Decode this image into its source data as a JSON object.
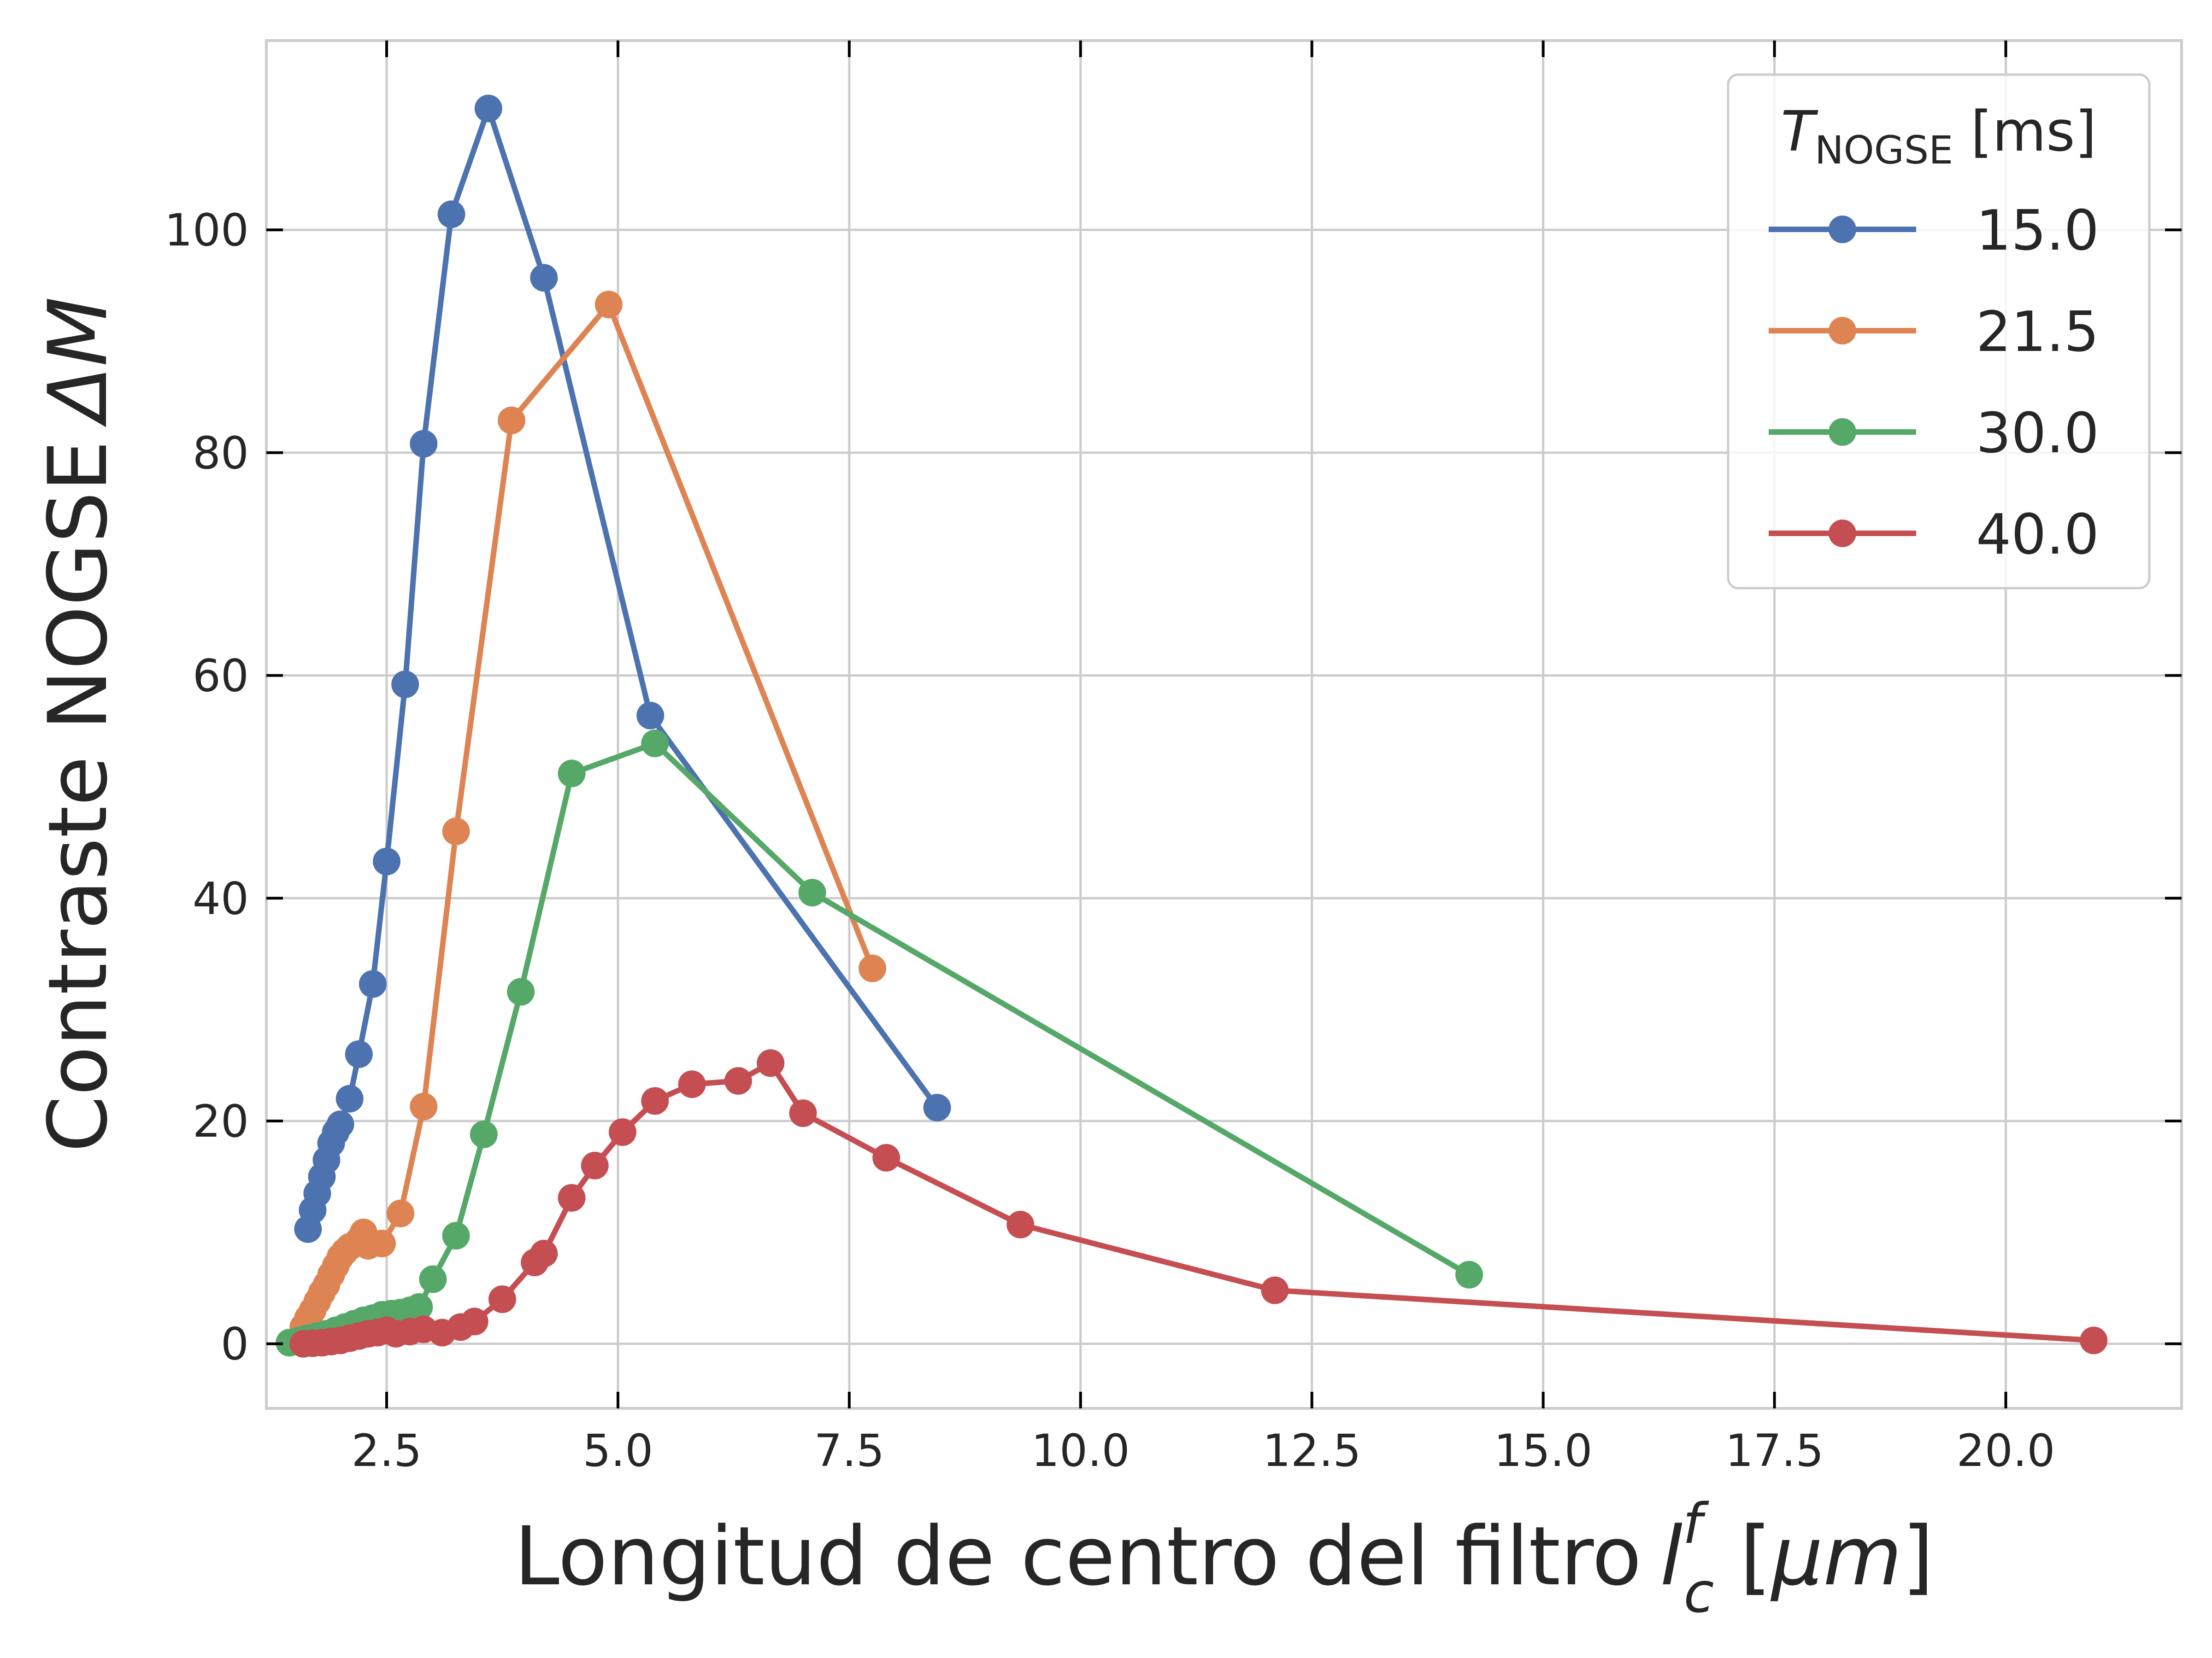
{
  "chart_data": {
    "type": "line",
    "xlabel": "Longitud de centro del filtro",
    "xlabel_symbol": "l",
    "xlabel_superscript": "f",
    "xlabel_subscript": "c",
    "xlabel_unit_open": " [",
    "xlabel_unit": "μm",
    "xlabel_unit_close": "]",
    "ylabel": "Contraste NOGSE",
    "ylabel_symbol": "ΔM",
    "xlim": [
      1.2,
      21.9
    ],
    "ylim": [
      -5.8,
      117
    ],
    "xticks": [
      2.5,
      5.0,
      7.5,
      10.0,
      12.5,
      15.0,
      17.5,
      20.0
    ],
    "xtick_labels": [
      "2.5",
      "5.0",
      "7.5",
      "10.0",
      "12.5",
      "15.0",
      "17.5",
      "20.0"
    ],
    "yticks": [
      0,
      20,
      40,
      60,
      80,
      100
    ],
    "ytick_labels": [
      "0",
      "20",
      "40",
      "60",
      "80",
      "100"
    ],
    "grid": true,
    "legend": {
      "placement": "top-right",
      "title_symbol": "T",
      "title_subscript": "NOGSE",
      "title_unit": " [ms]"
    },
    "series": [
      {
        "name": "15.0",
        "color": "#4c72b0",
        "x": [
          1.65,
          1.7,
          1.75,
          1.8,
          1.85,
          1.9,
          1.95,
          2.0,
          2.1,
          2.2,
          2.35,
          2.5,
          2.7,
          2.9,
          3.2,
          3.6,
          4.2,
          5.35,
          8.45
        ],
        "y": [
          10.3,
          12.0,
          13.5,
          15.0,
          16.5,
          18.0,
          19.0,
          19.7,
          22.0,
          26.0,
          32.3,
          43.3,
          59.2,
          80.8,
          101.4,
          110.9,
          95.7,
          56.4,
          21.2
        ]
      },
      {
        "name": "21.5",
        "color": "#dd8452",
        "x": [
          1.6,
          1.65,
          1.7,
          1.75,
          1.8,
          1.85,
          1.9,
          1.95,
          2.0,
          2.05,
          2.1,
          2.2,
          2.25,
          2.3,
          2.45,
          2.65,
          2.9,
          3.25,
          3.85,
          4.9,
          7.75
        ],
        "y": [
          1.5,
          2.3,
          3.0,
          3.8,
          4.6,
          5.3,
          6.2,
          7.0,
          7.8,
          8.3,
          8.7,
          9.3,
          10.0,
          8.8,
          9.0,
          11.7,
          21.3,
          46.0,
          82.9,
          93.3,
          33.7
        ]
      },
      {
        "name": "30.0",
        "color": "#55a868",
        "x": [
          1.45,
          1.55,
          1.65,
          1.75,
          1.85,
          1.95,
          2.05,
          2.15,
          2.25,
          2.35,
          2.45,
          2.55,
          2.65,
          2.75,
          2.85,
          3.0,
          3.25,
          3.55,
          3.95,
          4.5,
          5.4,
          7.1,
          14.2
        ],
        "y": [
          0.1,
          0.3,
          0.5,
          0.7,
          0.9,
          1.2,
          1.5,
          1.8,
          2.1,
          2.3,
          2.6,
          2.7,
          2.8,
          3.0,
          3.3,
          5.8,
          9.7,
          18.8,
          31.6,
          51.2,
          53.9,
          40.5,
          6.2
        ]
      },
      {
        "name": "40.0",
        "color": "#c44e52",
        "x": [
          1.6,
          1.7,
          1.8,
          1.9,
          2.0,
          2.1,
          2.2,
          2.3,
          2.4,
          2.5,
          2.6,
          2.75,
          2.9,
          3.1,
          3.3,
          3.45,
          3.75,
          4.1,
          4.2,
          4.5,
          4.75,
          5.05,
          5.4,
          5.8,
          6.3,
          6.65,
          7.0,
          7.9,
          9.35,
          12.1,
          20.95
        ],
        "y": [
          0.0,
          0.05,
          0.1,
          0.2,
          0.3,
          0.5,
          0.7,
          0.9,
          1.0,
          1.2,
          0.9,
          1.1,
          1.3,
          1.0,
          1.5,
          2.0,
          4.0,
          7.3,
          8.1,
          13.1,
          16.0,
          19.0,
          21.8,
          23.3,
          23.6,
          25.2,
          20.7,
          16.7,
          10.7,
          4.8,
          0.3
        ]
      }
    ]
  }
}
